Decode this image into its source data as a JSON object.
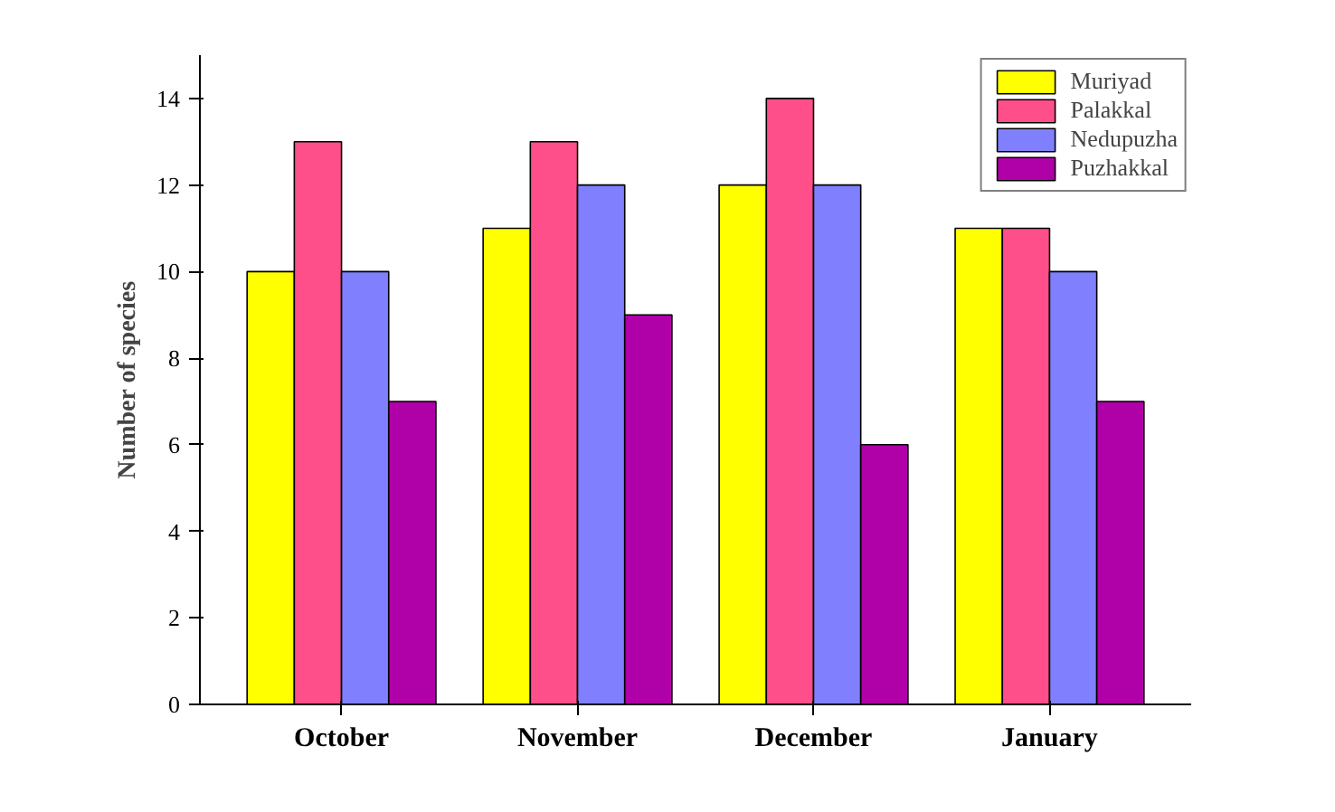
{
  "chart_data": {
    "type": "bar",
    "ylabel": "Number of species",
    "categories": [
      "October",
      "November",
      "December",
      "January"
    ],
    "series": [
      {
        "name": "Muriyad",
        "color": "#ffff00",
        "values": [
          10,
          11,
          12,
          11
        ]
      },
      {
        "name": "Palakkal",
        "color": "#ff4f8a",
        "values": [
          13,
          13,
          14,
          11
        ]
      },
      {
        "name": "Nedupuzha",
        "color": "#8080ff",
        "values": [
          10,
          12,
          12,
          10
        ]
      },
      {
        "name": "Puzhakkal",
        "color": "#b000a8",
        "values": [
          7,
          9,
          6,
          7
        ]
      }
    ],
    "ylim": [
      0,
      15
    ],
    "yticks": [
      0,
      2,
      4,
      6,
      8,
      10,
      12,
      14
    ],
    "grid": false,
    "legend": "top right"
  }
}
